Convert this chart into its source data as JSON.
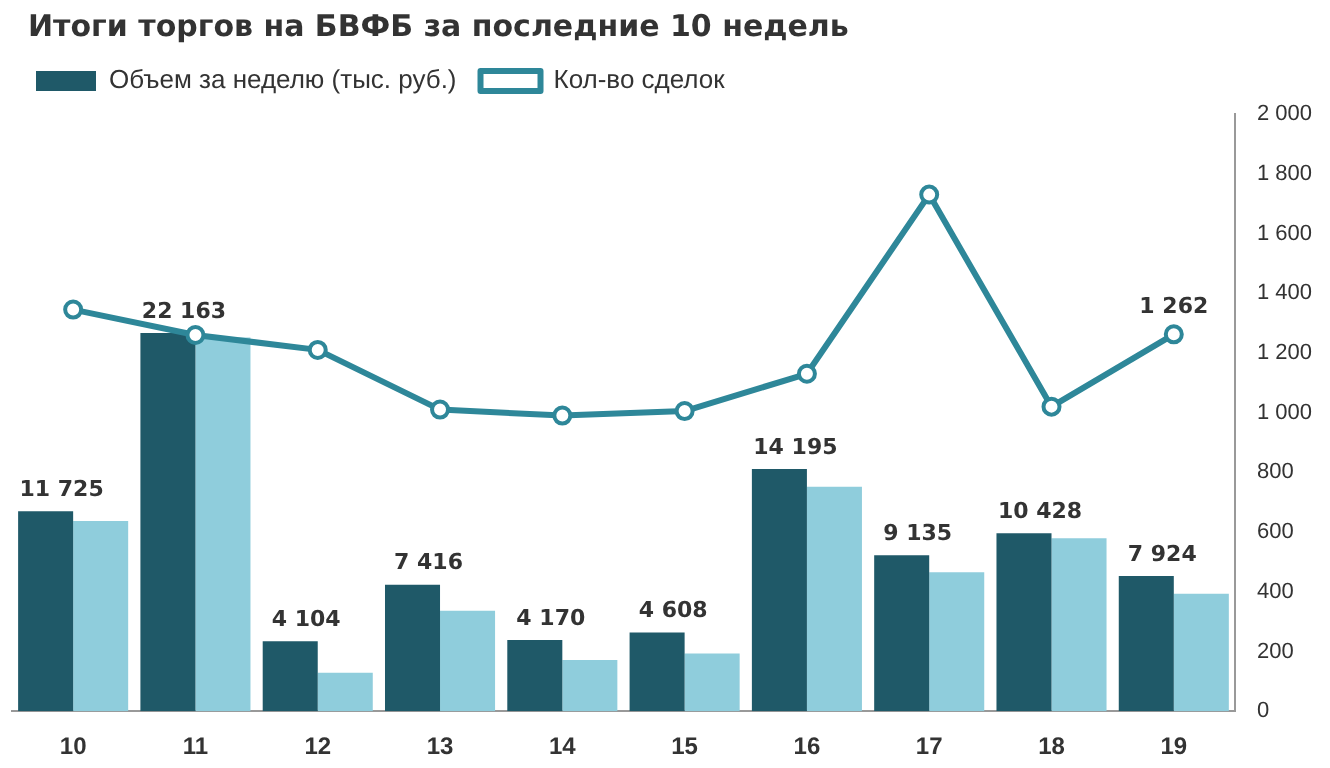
{
  "chart_data": {
    "type": "bar",
    "title": "Итоги торгов на БВФБ за последние 10 недель",
    "categories": [
      "10",
      "11",
      "12",
      "13",
      "14",
      "15",
      "16",
      "17",
      "18",
      "19"
    ],
    "series": [
      {
        "name": "Объем за неделю (тыс. руб.)",
        "color": "#1f5968",
        "values": [
          11725,
          22163,
          4104,
          7416,
          4170,
          4608,
          14195,
          9135,
          10428,
          7924
        ],
        "value_labels": [
          "11 725",
          "22 163",
          "4 104",
          "7 416",
          "4 170",
          "4 608",
          "14 195",
          "9 135",
          "10 428",
          "7 924"
        ]
      },
      {
        "color": "#8fcddc",
        "values": [
          11140,
          21900,
          2250,
          5880,
          3000,
          3380,
          13150,
          8140,
          10140,
          6890
        ]
      },
      {
        "name": "Кол-во сделок",
        "type": "line",
        "axis": "y2",
        "color": "#2e8799",
        "marker": "circle",
        "values": [
          1345,
          1260,
          1210,
          1010,
          990,
          1005,
          1130,
          1730,
          1020,
          1262
        ],
        "value_labels": [
          null,
          null,
          null,
          null,
          null,
          null,
          null,
          null,
          null,
          "1 262"
        ]
      }
    ],
    "ylim": [
      0,
      35000
    ],
    "y2lim": [
      0,
      2000
    ],
    "y2ticks": [
      0,
      200,
      400,
      600,
      800,
      1000,
      1200,
      1400,
      1600,
      1800,
      2000
    ],
    "legend": "top left",
    "grid": false
  }
}
